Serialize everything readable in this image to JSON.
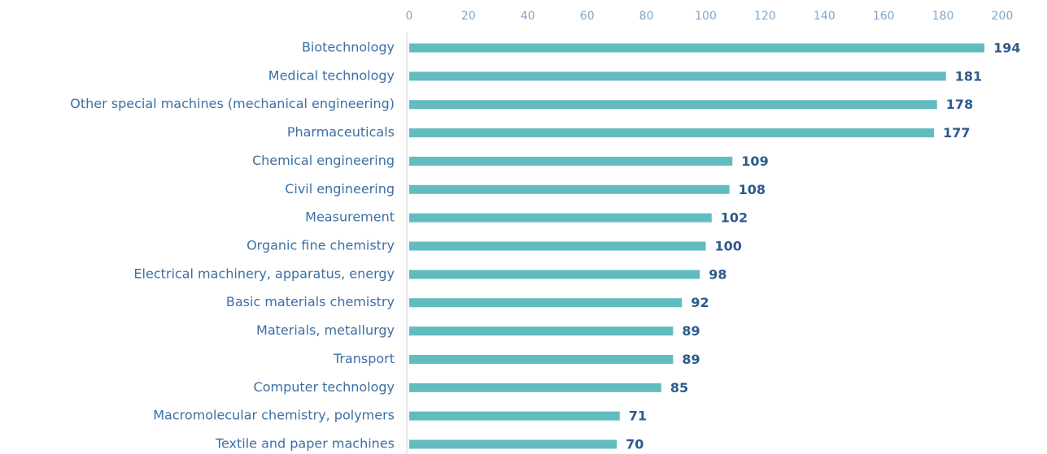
{
  "chart_data": {
    "type": "bar",
    "orientation": "horizontal",
    "categories": [
      "Biotechnology",
      "Medical technology",
      "Other special machines (mechanical engineering)",
      "Pharmaceuticals",
      "Chemical engineering",
      "Civil engineering",
      "Measurement",
      "Organic fine chemistry",
      "Electrical machinery, apparatus, energy",
      "Basic materials chemistry",
      "Materials, metallurgy",
      "Transport",
      "Computer technology",
      "Macromolecular chemistry, polymers",
      "Textile and paper machines"
    ],
    "values": [
      194,
      181,
      178,
      177,
      109,
      108,
      102,
      100,
      98,
      92,
      89,
      89,
      85,
      71,
      70
    ],
    "color": "#62bcbf",
    "xlim": [
      0,
      200
    ],
    "xticks": [
      0,
      20,
      40,
      60,
      80,
      100,
      120,
      140,
      160,
      180,
      200
    ]
  }
}
